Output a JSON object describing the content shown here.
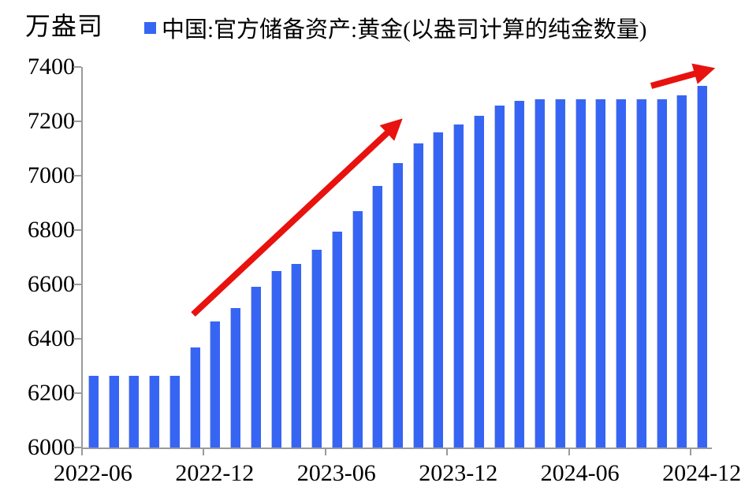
{
  "chart_data": {
    "type": "bar",
    "unit_label": "万盎司",
    "legend": "中国:官方储备资产:黄金(以盎司计算的纯金数量)",
    "categories": [
      "2022-06",
      "2022-07",
      "2022-08",
      "2022-09",
      "2022-10",
      "2022-11",
      "2022-12",
      "2023-01",
      "2023-02",
      "2023-03",
      "2023-04",
      "2023-05",
      "2023-06",
      "2023-07",
      "2023-08",
      "2023-09",
      "2023-10",
      "2023-11",
      "2023-12",
      "2024-01",
      "2024-02",
      "2024-03",
      "2024-04",
      "2024-05",
      "2024-06",
      "2024-07",
      "2024-08",
      "2024-09",
      "2024-10",
      "2024-11",
      "2024-12"
    ],
    "values": [
      6264,
      6264,
      6264,
      6264,
      6264,
      6367,
      6464,
      6512,
      6592,
      6650,
      6676,
      6727,
      6795,
      6869,
      6962,
      7046,
      7120,
      7158,
      7187,
      7219,
      7258,
      7274,
      7280,
      7280,
      7280,
      7280,
      7280,
      7280,
      7280,
      7296,
      7329
    ],
    "ylim": [
      6000,
      7400
    ],
    "ytick_step": 200,
    "yticks": [
      7400,
      7200,
      7000,
      6800,
      6600,
      6400,
      6200,
      6000
    ],
    "xtick_labels": [
      "2022-06",
      "2022-12",
      "2023-06",
      "2023-12",
      "2024-06",
      "2024-12"
    ],
    "xtick_indices": [
      0,
      6,
      12,
      18,
      24,
      30
    ],
    "grid": "off",
    "legend_position": "top",
    "colors": {
      "bar": "#3765f3",
      "bar_edge": "#b9c2e6",
      "axis": "#9a9a9a",
      "arrow": "#e8120e",
      "text": "#000000"
    },
    "annotations": [
      {
        "kind": "trend-arrow",
        "from": [
          245,
          399
        ],
        "to": [
          509,
          152
        ]
      },
      {
        "kind": "trend-arrow",
        "from": [
          826,
          109
        ],
        "to": [
          905,
          87
        ]
      }
    ]
  },
  "layout_note": ""
}
